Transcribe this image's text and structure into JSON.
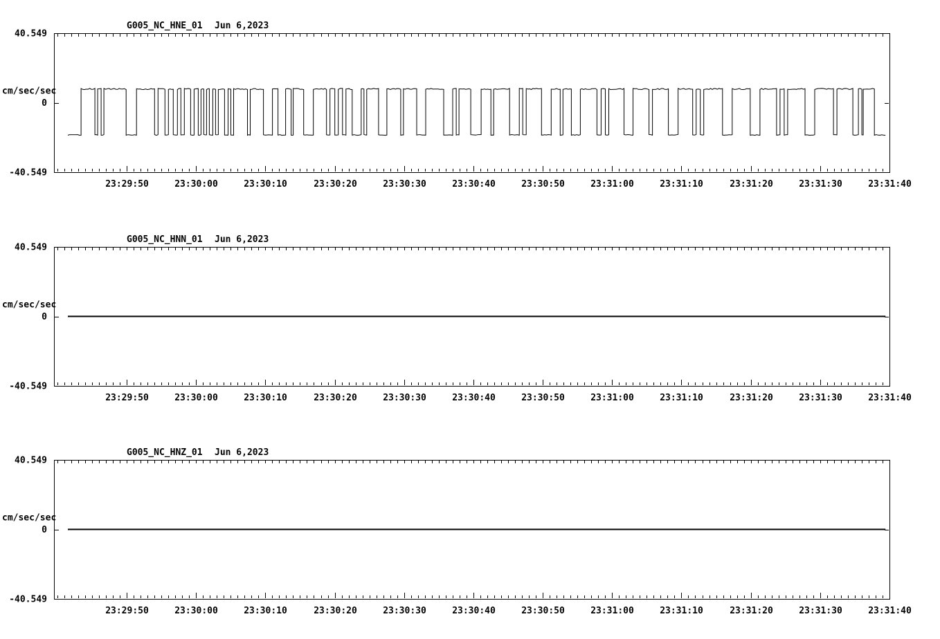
{
  "figure": {
    "background": "#ffffff",
    "line_color": "#000000"
  },
  "chart_data": [
    {
      "type": "line",
      "title": "G005_NC_HNE_01",
      "date_label": "Jun 6,2023",
      "ylabel": "cm/sec/sec",
      "ylim": [
        -40.549,
        40.549
      ],
      "ytick_values": [
        40.549,
        0,
        -40.549
      ],
      "ytick_labels": [
        "40.549",
        "0",
        "-40.549"
      ],
      "xtick_labels": [
        "23:29:50",
        "23:30:00",
        "23:30:10",
        "23:30:20",
        "23:30:30",
        "23:30:40",
        "23:30:50",
        "23:31:00",
        "23:31:10",
        "23:31:20",
        "23:31:30",
        "23:31:40"
      ],
      "x_axis": {
        "span_seconds": 120.48,
        "first_tick_offset_seconds": 10.48,
        "tick_interval_seconds": 10,
        "minor_tick_interval_seconds": 1
      },
      "grid": false,
      "legend": "none",
      "signal": {
        "kind": "square_wave",
        "units": "cm/sec/sec",
        "high_value": 8.0,
        "low_value": -18.8,
        "start_second": 2.0,
        "end_second": 119.9,
        "low_pulses_seconds": [
          [
            2.0,
            3.9
          ],
          [
            5.9,
            6.3
          ],
          [
            6.8,
            7.2
          ],
          [
            10.4,
            11.9
          ],
          [
            14.5,
            15.0
          ],
          [
            16.0,
            16.5
          ],
          [
            17.2,
            17.8
          ],
          [
            18.3,
            18.8
          ],
          [
            19.7,
            20.2
          ],
          [
            20.8,
            21.2
          ],
          [
            21.6,
            22.0
          ],
          [
            22.4,
            22.9
          ],
          [
            23.3,
            23.7
          ],
          [
            24.6,
            25.1
          ],
          [
            25.5,
            25.9
          ],
          [
            27.9,
            28.3
          ],
          [
            30.2,
            31.5
          ],
          [
            32.3,
            33.4
          ],
          [
            34.2,
            34.5
          ],
          [
            36.0,
            37.4
          ],
          [
            39.3,
            39.8
          ],
          [
            40.5,
            41.0
          ],
          [
            41.6,
            42.1
          ],
          [
            43.0,
            44.3
          ],
          [
            44.7,
            45.1
          ],
          [
            46.8,
            48.0
          ],
          [
            50.0,
            50.4
          ],
          [
            52.3,
            53.6
          ],
          [
            56.2,
            57.5
          ],
          [
            58.0,
            58.4
          ],
          [
            60.1,
            61.6
          ],
          [
            63.0,
            63.4
          ],
          [
            65.7,
            67.1
          ],
          [
            67.6,
            68.1
          ],
          [
            70.3,
            71.7
          ],
          [
            73.0,
            73.4
          ],
          [
            74.6,
            75.9
          ],
          [
            78.3,
            78.9
          ],
          [
            79.5,
            80.0
          ],
          [
            82.2,
            83.5
          ],
          [
            85.8,
            86.3
          ],
          [
            88.6,
            90.0
          ],
          [
            92.1,
            92.6
          ],
          [
            93.2,
            93.7
          ],
          [
            96.4,
            97.8
          ],
          [
            100.4,
            101.8
          ],
          [
            104.2,
            104.7
          ],
          [
            105.3,
            105.8
          ],
          [
            108.3,
            109.7
          ],
          [
            112.4,
            112.9
          ],
          [
            115.2,
            116.0
          ],
          [
            116.5,
            116.7
          ],
          [
            118.3,
            119.9
          ]
        ]
      }
    },
    {
      "type": "line",
      "title": "G005_NC_HNN_01",
      "date_label": "Jun 6,2023",
      "ylabel": "cm/sec/sec",
      "ylim": [
        -40.549,
        40.549
      ],
      "ytick_values": [
        40.549,
        0,
        -40.549
      ],
      "ytick_labels": [
        "40.549",
        "0",
        "-40.549"
      ],
      "xtick_labels": [
        "23:29:50",
        "23:30:00",
        "23:30:10",
        "23:30:20",
        "23:30:30",
        "23:30:40",
        "23:30:50",
        "23:31:00",
        "23:31:10",
        "23:31:20",
        "23:31:30",
        "23:31:40"
      ],
      "x_axis": {
        "span_seconds": 120.48,
        "first_tick_offset_seconds": 10.48,
        "tick_interval_seconds": 10,
        "minor_tick_interval_seconds": 1
      },
      "grid": false,
      "legend": "none",
      "signal": {
        "kind": "flat",
        "units": "cm/sec/sec",
        "value": 0,
        "start_second": 2.0,
        "end_second": 119.9
      }
    },
    {
      "type": "line",
      "title": "G005_NC_HNZ_01",
      "date_label": "Jun 6,2023",
      "ylabel": "cm/sec/sec",
      "ylim": [
        -40.549,
        40.549
      ],
      "ytick_values": [
        40.549,
        0,
        -40.549
      ],
      "ytick_labels": [
        "40.549",
        "0",
        "-40.549"
      ],
      "xtick_labels": [
        "23:29:50",
        "23:30:00",
        "23:30:10",
        "23:30:20",
        "23:30:30",
        "23:30:40",
        "23:30:50",
        "23:31:00",
        "23:31:10",
        "23:31:20",
        "23:31:30",
        "23:31:40"
      ],
      "x_axis": {
        "span_seconds": 120.48,
        "first_tick_offset_seconds": 10.48,
        "tick_interval_seconds": 10,
        "minor_tick_interval_seconds": 1
      },
      "grid": false,
      "legend": "none",
      "signal": {
        "kind": "flat",
        "units": "cm/sec/sec",
        "value": 0,
        "start_second": 2.0,
        "end_second": 119.9
      }
    }
  ]
}
